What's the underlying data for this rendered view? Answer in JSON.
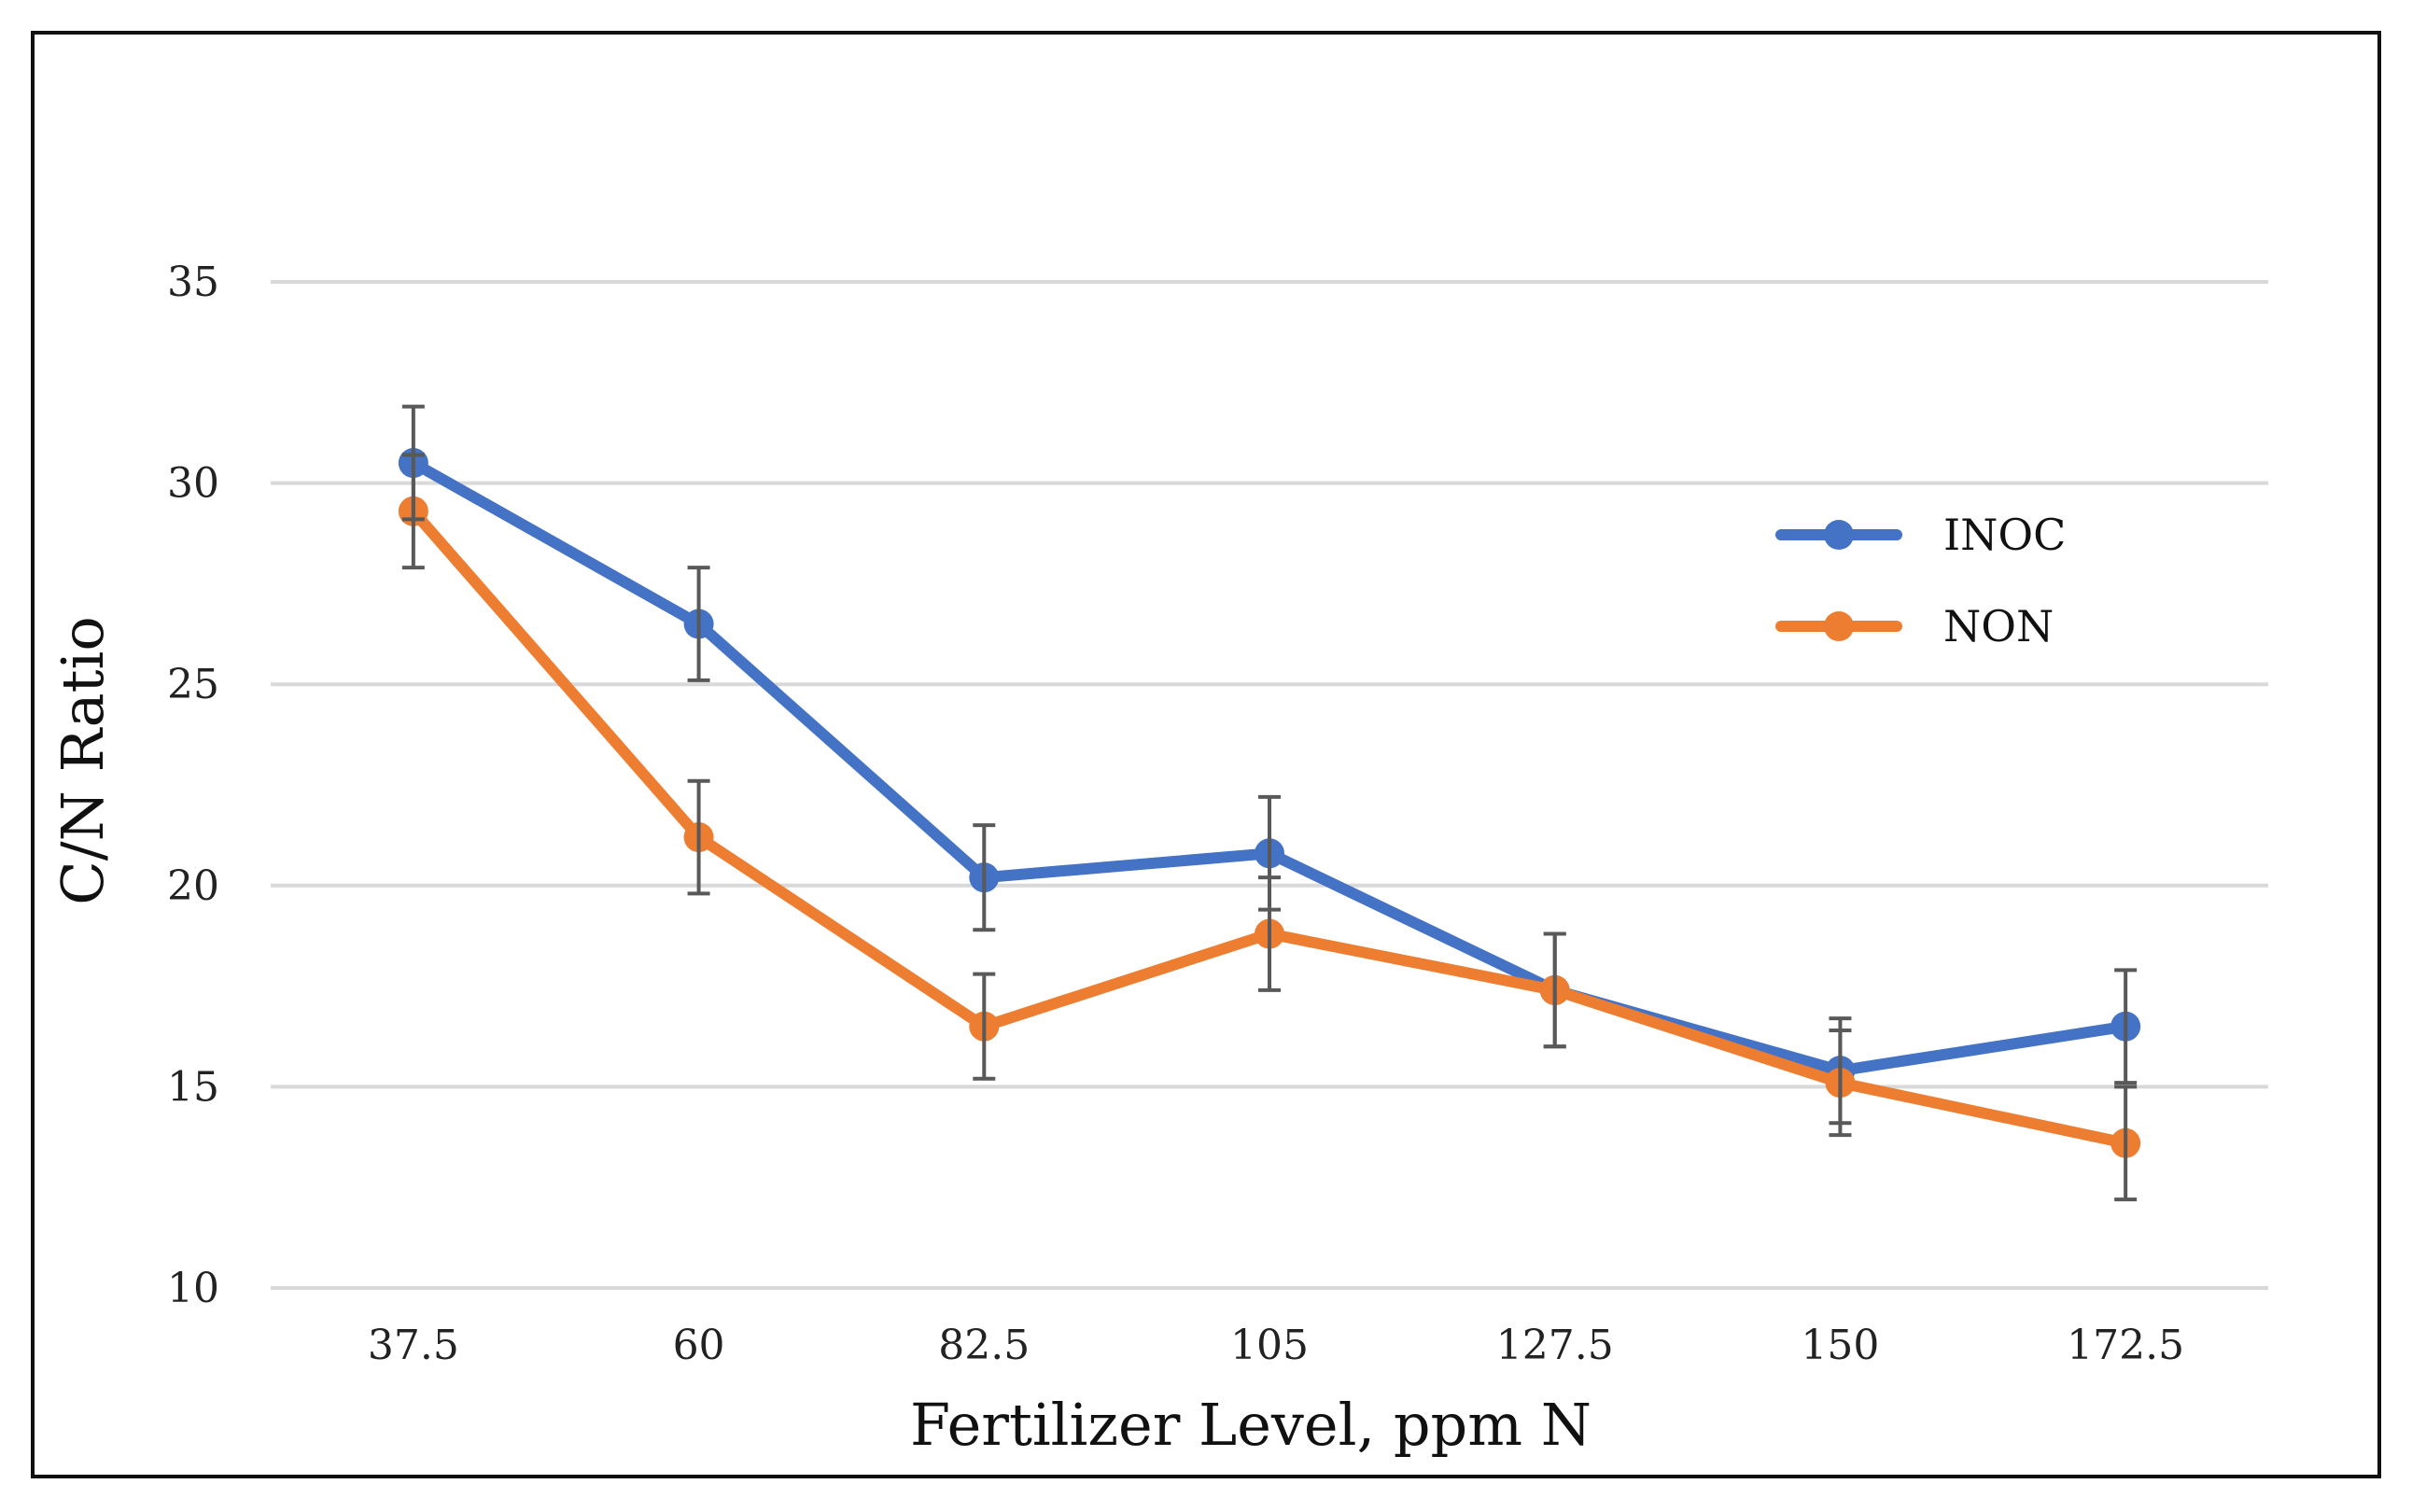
{
  "chart_data": {
    "type": "line",
    "title": "",
    "xlabel": "Fertilizer Level, ppm N",
    "ylabel": "C/N Ratio",
    "categories": [
      "37.5",
      "60",
      "82.5",
      "105",
      "127.5",
      "150",
      "172.5"
    ],
    "yticks": [
      "10",
      "15",
      "20",
      "25",
      "30",
      "35"
    ],
    "ylim": [
      10,
      35
    ],
    "grid": true,
    "legend_position": "right",
    "series": [
      {
        "name": "INOC",
        "color": "#4472C4",
        "values": [
          30.5,
          26.5,
          20.2,
          20.8,
          17.4,
          15.4,
          16.5
        ],
        "errors": [
          1.4,
          1.4,
          1.3,
          1.4,
          1.4,
          1.3,
          1.4
        ]
      },
      {
        "name": "NON",
        "color": "#ED7D31",
        "values": [
          29.3,
          21.2,
          16.5,
          18.8,
          17.4,
          15.1,
          13.6
        ],
        "errors": [
          1.4,
          1.4,
          1.3,
          1.4,
          1.4,
          1.3,
          1.4
        ]
      }
    ]
  }
}
